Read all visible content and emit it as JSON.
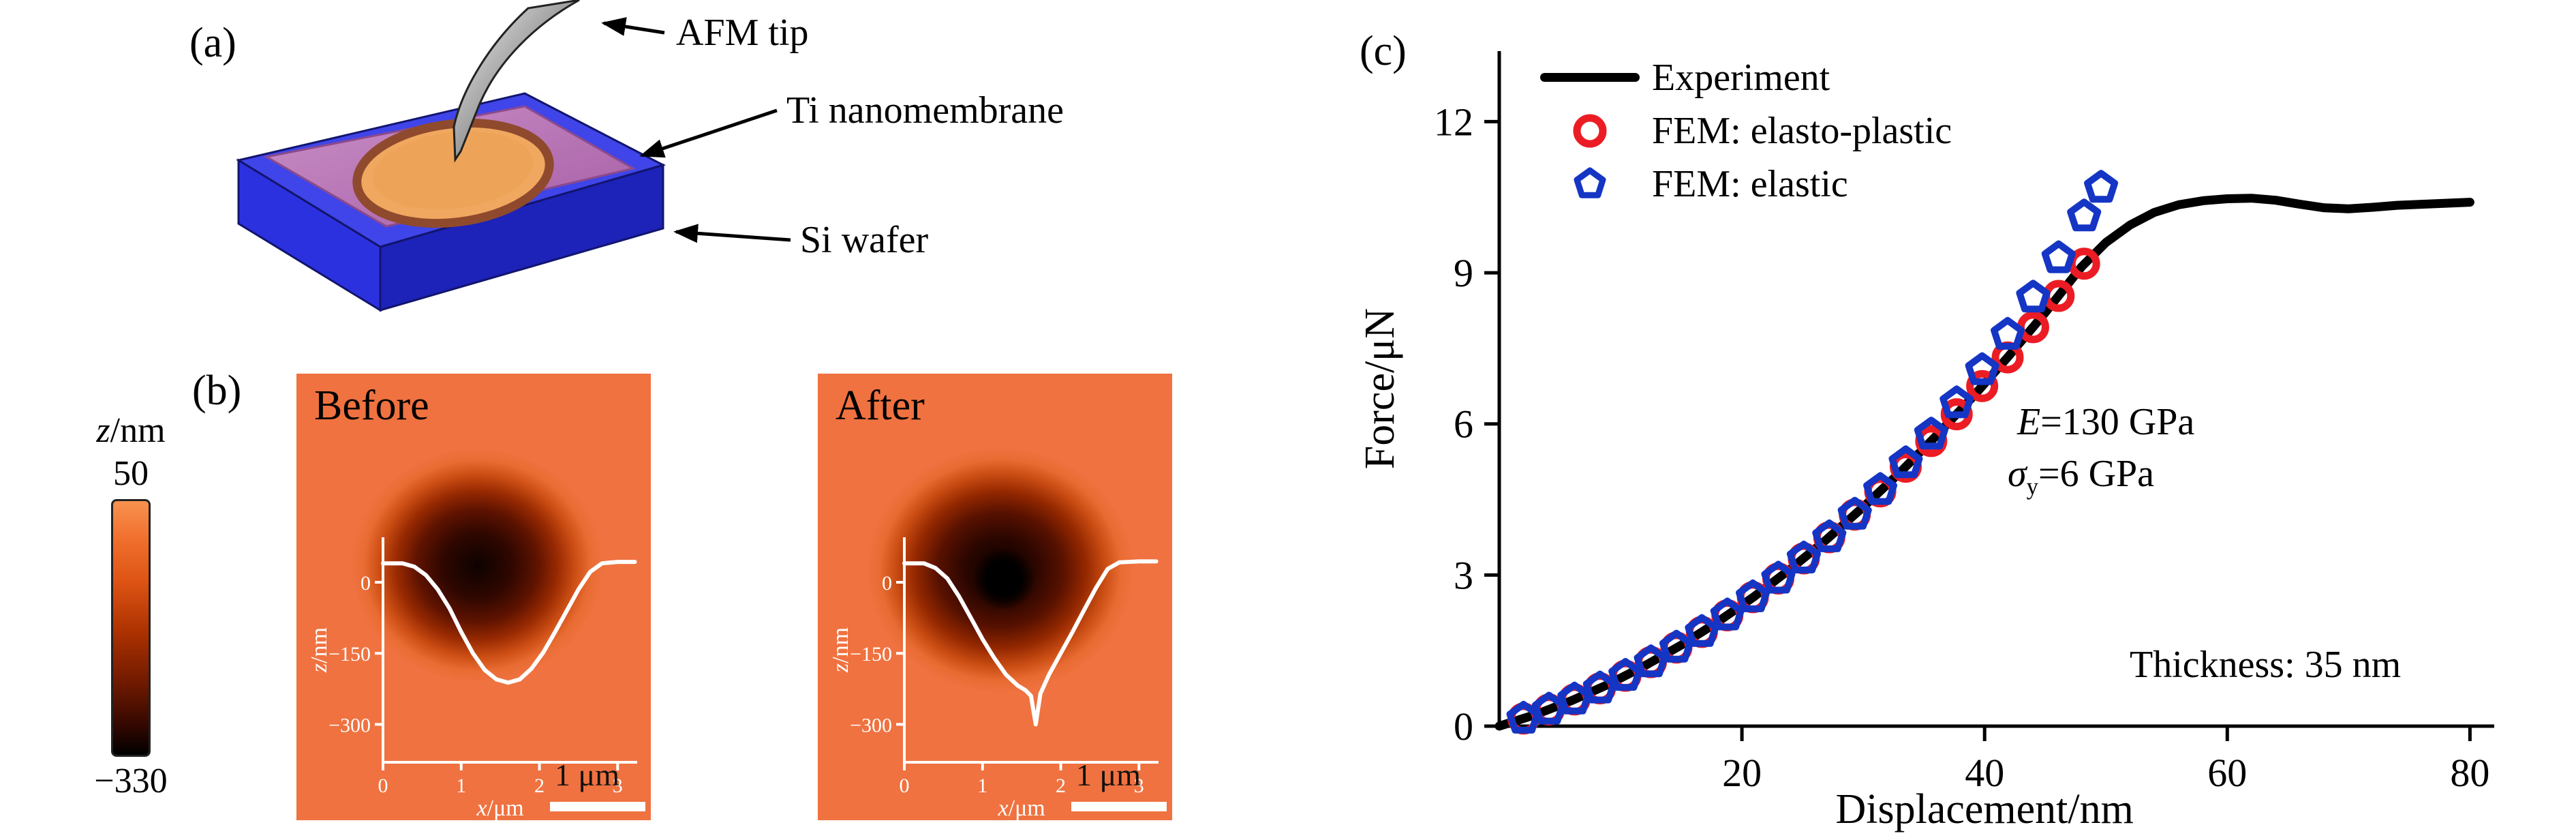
{
  "figure": {
    "panel_a": {
      "label": "(a)",
      "annotations": {
        "tip": "AFM tip",
        "membrane": "Ti nanomembrane",
        "wafer": "Si wafer"
      }
    },
    "panel_b": {
      "label": "(b)",
      "colorbar": {
        "title_sym": "z",
        "title_unit": "/nm",
        "max": "50",
        "min": "−330"
      },
      "scalebar": "1 μm",
      "images": [
        {
          "title": "Before"
        },
        {
          "title": "After"
        }
      ],
      "inset": {
        "ylabel_sym": "z",
        "ylabel_unit": "/nm",
        "xlabel_sym": "x",
        "xlabel_unit": "/μm",
        "yticks": [
          0,
          -150,
          -300
        ],
        "xticks": [
          0,
          1,
          2,
          3
        ],
        "xmax": 3.25,
        "zmax": 95,
        "zmin": -380,
        "profiles": {
          "before": [
            [
              0,
              40
            ],
            [
              0.25,
              40
            ],
            [
              0.4,
              33
            ],
            [
              0.55,
              15
            ],
            [
              0.7,
              -15
            ],
            [
              0.85,
              -55
            ],
            [
              1.0,
              -105
            ],
            [
              1.15,
              -150
            ],
            [
              1.3,
              -185
            ],
            [
              1.45,
              -205
            ],
            [
              1.6,
              -212
            ],
            [
              1.75,
              -205
            ],
            [
              1.9,
              -182
            ],
            [
              2.05,
              -148
            ],
            [
              2.2,
              -105
            ],
            [
              2.35,
              -60
            ],
            [
              2.5,
              -15
            ],
            [
              2.65,
              22
            ],
            [
              2.8,
              40
            ],
            [
              3.0,
              43
            ],
            [
              3.22,
              43
            ]
          ],
          "after": [
            [
              0,
              40
            ],
            [
              0.25,
              40
            ],
            [
              0.4,
              30
            ],
            [
              0.55,
              8
            ],
            [
              0.7,
              -30
            ],
            [
              0.85,
              -75
            ],
            [
              1.0,
              -120
            ],
            [
              1.15,
              -160
            ],
            [
              1.3,
              -195
            ],
            [
              1.45,
              -218
            ],
            [
              1.55,
              -228
            ],
            [
              1.62,
              -240
            ],
            [
              1.68,
              -300
            ],
            [
              1.74,
              -235
            ],
            [
              1.85,
              -195
            ],
            [
              2.0,
              -150
            ],
            [
              2.15,
              -105
            ],
            [
              2.3,
              -58
            ],
            [
              2.45,
              -12
            ],
            [
              2.6,
              28
            ],
            [
              2.75,
              42
            ],
            [
              3.0,
              44
            ],
            [
              3.22,
              44
            ]
          ]
        }
      }
    },
    "panel_c": {
      "label": "(c)",
      "annotations": [
        {
          "sym": "E",
          "sub": "",
          "text": "=130 GPa"
        },
        {
          "sym": "σ",
          "sub": "y",
          "text": "=6 GPa"
        },
        {
          "sym": "",
          "sub": "",
          "text": "Thickness: 35 nm"
        }
      ]
    }
  },
  "chart_data": {
    "type": "line",
    "title": "",
    "xlabel": "Displacement/nm",
    "ylabel": "Force/μN",
    "xlim": [
      0,
      82
    ],
    "ylim": [
      0,
      13.4
    ],
    "xticks": [
      20,
      40,
      60,
      80
    ],
    "yticks": [
      0,
      3,
      6,
      9,
      12
    ],
    "grid": false,
    "legend_position": "top-left",
    "series": [
      {
        "name": "Experiment",
        "marker": "line",
        "color": "#000000",
        "points": [
          [
            0,
            0
          ],
          [
            3,
            0.23
          ],
          [
            6,
            0.51
          ],
          [
            9,
            0.83
          ],
          [
            12,
            1.2
          ],
          [
            15,
            1.61
          ],
          [
            18,
            2.07
          ],
          [
            21,
            2.57
          ],
          [
            24,
            3.12
          ],
          [
            27,
            3.71
          ],
          [
            30,
            4.35
          ],
          [
            33,
            5.03
          ],
          [
            36,
            5.76
          ],
          [
            39,
            6.53
          ],
          [
            42,
            7.35
          ],
          [
            45,
            8.21
          ],
          [
            48,
            9.12
          ],
          [
            50,
            9.6
          ],
          [
            52,
            9.95
          ],
          [
            54,
            10.2
          ],
          [
            56,
            10.35
          ],
          [
            58,
            10.43
          ],
          [
            60,
            10.47
          ],
          [
            62,
            10.48
          ],
          [
            64,
            10.44
          ],
          [
            66,
            10.36
          ],
          [
            68,
            10.29
          ],
          [
            70,
            10.27
          ],
          [
            72,
            10.3
          ],
          [
            74,
            10.34
          ],
          [
            76,
            10.36
          ],
          [
            78,
            10.38
          ],
          [
            80,
            10.4
          ]
        ]
      },
      {
        "name": "FEM: elasto-plastic",
        "marker": "circle",
        "color": "#ec1c24",
        "points": [
          [
            2,
            0.15
          ],
          [
            4.1,
            0.33
          ],
          [
            6.2,
            0.53
          ],
          [
            8.3,
            0.75
          ],
          [
            10.4,
            1.0
          ],
          [
            12.5,
            1.27
          ],
          [
            14.6,
            1.56
          ],
          [
            16.7,
            1.87
          ],
          [
            18.8,
            2.2
          ],
          [
            20.9,
            2.56
          ],
          [
            23,
            2.93
          ],
          [
            25.1,
            3.33
          ],
          [
            27.2,
            3.75
          ],
          [
            29.3,
            4.2
          ],
          [
            31.4,
            4.66
          ],
          [
            33.5,
            5.15
          ],
          [
            35.6,
            5.66
          ],
          [
            37.7,
            6.19
          ],
          [
            39.8,
            6.75
          ],
          [
            41.9,
            7.32
          ],
          [
            44,
            7.92
          ],
          [
            46.1,
            8.54
          ],
          [
            48.2,
            9.18
          ]
        ]
      },
      {
        "name": "FEM: elastic",
        "marker": "pentagon",
        "color": "#1535c4",
        "points": [
          [
            2,
            0.15
          ],
          [
            4.1,
            0.33
          ],
          [
            6.2,
            0.53
          ],
          [
            8.3,
            0.75
          ],
          [
            10.4,
            1.0
          ],
          [
            12.5,
            1.27
          ],
          [
            14.6,
            1.56
          ],
          [
            16.7,
            1.87
          ],
          [
            18.8,
            2.2
          ],
          [
            20.9,
            2.56
          ],
          [
            23,
            2.93
          ],
          [
            25.1,
            3.33
          ],
          [
            27.2,
            3.75
          ],
          [
            29.3,
            4.2
          ],
          [
            31.4,
            4.69
          ],
          [
            33.5,
            5.22
          ],
          [
            35.6,
            5.79
          ],
          [
            37.7,
            6.41
          ],
          [
            39.8,
            7.07
          ],
          [
            41.9,
            7.77
          ],
          [
            44,
            8.51
          ],
          [
            46.1,
            9.29
          ],
          [
            48.2,
            10.12
          ],
          [
            49.6,
            10.69
          ]
        ]
      }
    ]
  }
}
